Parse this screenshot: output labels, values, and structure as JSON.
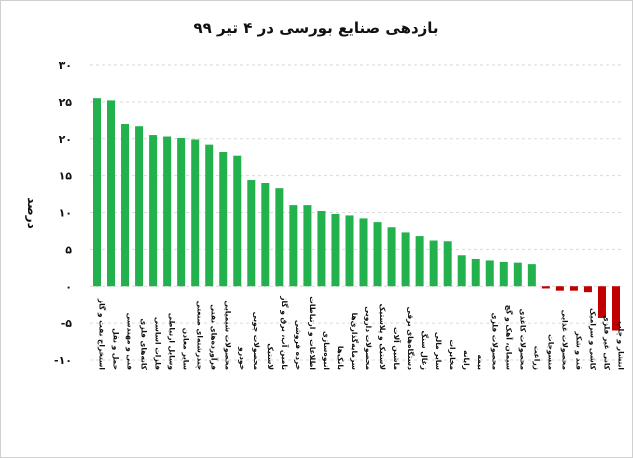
{
  "chart_data": {
    "type": "bar",
    "title": "بازدهی صنایع بورسی در ۴ تیر ۹۹",
    "xlabel": "",
    "ylabel": "درصد",
    "ylim": [
      -10,
      30
    ],
    "yticks": [
      -10,
      -5,
      0,
      5,
      10,
      15,
      20,
      25,
      30
    ],
    "ytick_labels": [
      "-۱۰",
      "-۵",
      "۰",
      "۵",
      "۱۰",
      "۱۵",
      "۲۰",
      "۲۵",
      "۳۰"
    ],
    "grid": true,
    "legend": "none",
    "colors": {
      "positive": "#22b14c",
      "negative": "#c00000"
    },
    "categories": [
      "استخراج نفت و گاز",
      "حمل و نقل",
      "فنی و مهندسی",
      "کانه‌های فلزی",
      "فلزات اساسی",
      "وسایل ارتباطی",
      "سایر معادن",
      "چندرشته‌ای صنعتی",
      "فرآورده‌های نفتی",
      "محصولات شیمیایی",
      "خودرو",
      "محصولات چوبی",
      "لاستیک",
      "تامین آب، برق و گاز",
      "خرده فروشی",
      "اطلاعات و ارتباطات",
      "انبوه‌سازی",
      "بانک‌ها",
      "سرمایه‌گذاری‌ها",
      "محصولات دارویی",
      "لاستیک و پلاستیک",
      "ماشین آلات",
      "دستگاه‌های برقی",
      "زغال سنگ",
      "سایر مالی",
      "مخابرات",
      "رایانه",
      "بیمه",
      "محصولات فلزی",
      "سیمان، آهک و گچ",
      "محصولات کاغذی",
      "زراعت",
      "منسوجات",
      "محصولات غذایی",
      "قند و شکر",
      "کاشی و سرامیک",
      "کانی غیر فلزی",
      "انتشار و چاپ"
    ],
    "values": [
      25.5,
      25.2,
      22.0,
      21.7,
      20.5,
      20.3,
      20.1,
      19.9,
      19.2,
      18.2,
      17.7,
      14.4,
      14.0,
      13.3,
      11.0,
      11.0,
      10.2,
      9.8,
      9.6,
      9.2,
      8.7,
      8.0,
      7.3,
      6.8,
      6.2,
      6.1,
      4.2,
      3.7,
      3.5,
      3.3,
      3.2,
      3.0,
      -0.3,
      -0.6,
      -0.6,
      -0.8,
      -4.3,
      -6.0
    ]
  }
}
